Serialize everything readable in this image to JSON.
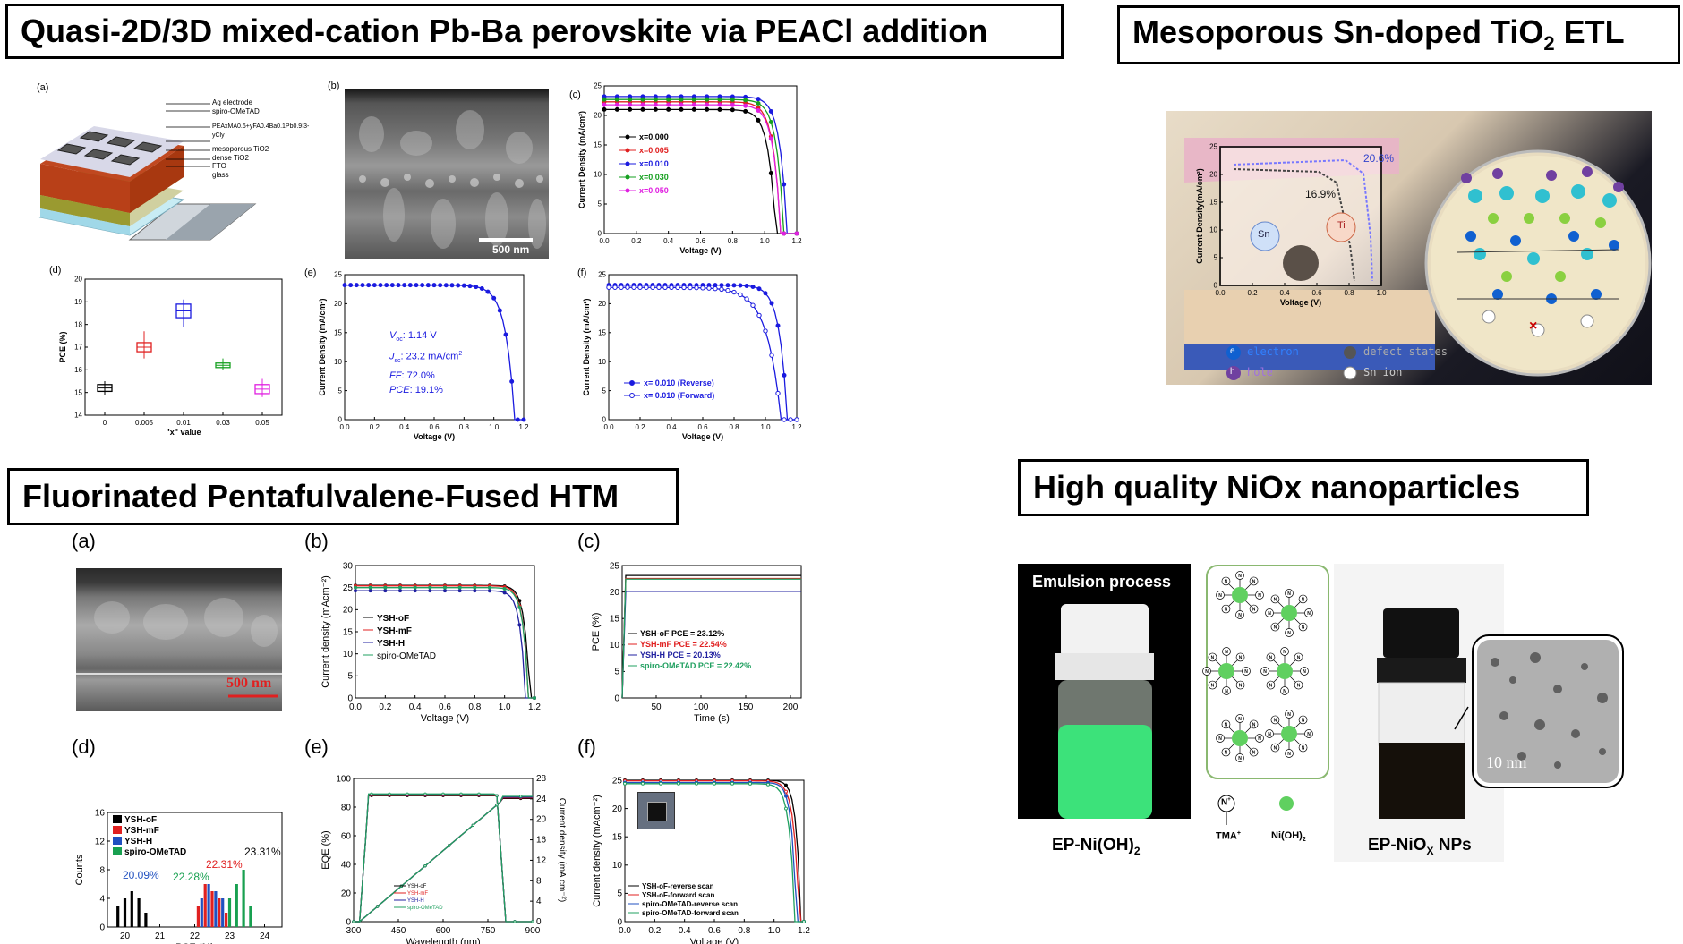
{
  "titles": {
    "t1": "Quasi-2D/3D mixed-cation Pb-Ba perovskite via PEACl addition",
    "t2_pre": "Mesoporous Sn-doped TiO",
    "t2_sub": "2",
    "t2_post": " ETL",
    "t3": "Fluorinated Pentafulvalene-Fused HTM",
    "t4": "High quality NiOx nanoparticles"
  },
  "q1": {
    "a": {
      "label": "(a)",
      "layers": [
        "Ag electrode",
        "spiro-OMeTAD",
        "PEAxMA0.6+yFA0.4Ba0.1Pb0.9I3-yCly",
        "mesoporous TiO2",
        "dense TiO2",
        "FTO",
        "glass"
      ]
    },
    "b": {
      "label": "(b)",
      "scale": "500 nm"
    },
    "c": {
      "label": "(c)",
      "ylabel": "Current Density (mA/cm²)",
      "xlabel": "Voltage (V)",
      "xticks": [
        "0.0",
        "0.2",
        "0.4",
        "0.6",
        "0.8",
        "1.0",
        "1.2"
      ],
      "yticks": [
        "0",
        "5",
        "10",
        "15",
        "20",
        "25"
      ],
      "legend": [
        "x=0.000",
        "x=0.005",
        "x=0.010",
        "x=0.030",
        "x=0.050"
      ],
      "colors": [
        "#000000",
        "#e02020",
        "#1a1adf",
        "#16a020",
        "#e020e0"
      ]
    },
    "d": {
      "label": "(d)",
      "ylabel": "PCE (%)",
      "xlabel": "\"x\" value",
      "xticks": [
        "0",
        "0.005",
        "0.01",
        "0.03",
        "0.05"
      ],
      "yticks": [
        "14",
        "15",
        "16",
        "17",
        "18",
        "19",
        "20"
      ]
    },
    "e": {
      "label": "(e)",
      "ylabel": "Current Density (mA/cm²)",
      "xlabel": "Voltage (V)",
      "xticks": [
        "0.0",
        "0.2",
        "0.4",
        "0.6",
        "0.8",
        "1.0",
        "1.2"
      ],
      "yticks": [
        "0",
        "5",
        "10",
        "15",
        "20",
        "25"
      ],
      "voc": "1.14 V",
      "jsc": "23.2 mA/cm",
      "ff": "72.0%",
      "pce": "19.1%",
      "voc_lbl": "V",
      "voc_sub": "oc",
      "jsc_lbl": "J",
      "jsc_sub": "sc",
      "jsc_sup": "2",
      "ff_lbl": "FF",
      "pce_lbl": "PCE"
    },
    "f": {
      "label": "(f)",
      "ylabel": "Current Density (mA/cm²)",
      "xlabel": "Voltage (V)",
      "xticks": [
        "0.0",
        "0.2",
        "0.4",
        "0.6",
        "0.8",
        "1.0",
        "1.2"
      ],
      "yticks": [
        "0",
        "5",
        "10",
        "15",
        "20",
        "25"
      ],
      "legend": [
        "x= 0.010 (Reverse)",
        "x= 0.010 (Forward)"
      ]
    }
  },
  "q2": {
    "ylabel": "Current Density(mA/cm²)",
    "xlabel": "Voltage (V)",
    "pce_high": "20.6%",
    "pce_low": "16.9%",
    "sn": "Sn",
    "ti": "Ti",
    "xticks": [
      "0.0",
      "0.2",
      "0.4",
      "0.6",
      "0.8",
      "1.0"
    ],
    "yticks": [
      "0",
      "5",
      "10",
      "15",
      "20",
      "25"
    ],
    "legend": [
      "electron",
      "hole",
      "defect states",
      "Sn ion"
    ],
    "legend_glyphs": [
      "e",
      "h"
    ]
  },
  "q3": {
    "a": {
      "label": "(a)",
      "scale": "500 nm"
    },
    "b": {
      "label": "(b)",
      "ylabel": "Current density (mAcm⁻²)",
      "xlabel": "Voltage (V)",
      "xticks": [
        "0.0",
        "0.2",
        "0.4",
        "0.6",
        "0.8",
        "1.0",
        "1.2"
      ],
      "yticks": [
        "0",
        "5",
        "10",
        "15",
        "20",
        "25",
        "30"
      ],
      "legend": [
        "YSH-oF",
        "YSH-mF",
        "YSH-H",
        "spiro-OMeTAD"
      ]
    },
    "c": {
      "label": "(c)",
      "ylabel": "PCE (%)",
      "xlabel": "Time (s)",
      "xticks": [
        "50",
        "100",
        "150",
        "200"
      ],
      "yticks": [
        "0",
        "5",
        "10",
        "15",
        "20",
        "25"
      ],
      "legend": [
        "YSH-oF PCE = 23.12%",
        "YSH-mF PCE = 22.54%",
        "YSH-H PCE = 20.13%",
        "spiro-OMeTAD PCE = 22.42%"
      ]
    },
    "d": {
      "label": "(d)",
      "ylabel": "Counts",
      "xlabel": "PCE (%)",
      "xticks": [
        "20",
        "21",
        "22",
        "23",
        "24"
      ],
      "yticks": [
        "0",
        "4",
        "8",
        "12",
        "16"
      ],
      "legend": [
        "YSH-oF",
        "YSH-mF",
        "YSH-H",
        "spiro-OMeTAD"
      ],
      "annots": [
        "23.31%",
        "22.31%",
        "22.28%",
        "20.09%"
      ]
    },
    "e": {
      "label": "(e)",
      "ylabel": "EQE (%)",
      "ylabel2": "Current density (mA cm⁻²)",
      "xlabel": "Wavelength (nm)",
      "xticks": [
        "300",
        "450",
        "600",
        "750",
        "900"
      ],
      "yticks": [
        "0",
        "20",
        "40",
        "60",
        "80",
        "100"
      ],
      "y2ticks": [
        "0",
        "4",
        "8",
        "12",
        "16",
        "20",
        "24",
        "28"
      ],
      "legend": [
        "YSH-oF",
        "YSH-mF",
        "YSH-H",
        "spiro-OMeTAD"
      ]
    },
    "f": {
      "label": "(f)",
      "ylabel": "Current density (mAcm⁻²)",
      "xlabel": "Voltage (V)",
      "xticks": [
        "0.0",
        "0.2",
        "0.4",
        "0.6",
        "0.8",
        "1.0",
        "1.2"
      ],
      "yticks": [
        "0",
        "5",
        "10",
        "15",
        "20",
        "25"
      ],
      "legend": [
        "YSH-oF-reverse scan",
        "YSH-oF-forward scan",
        "spiro-OMeTAD-reverse scan",
        "spiro-OMeTAD-forward scan"
      ]
    }
  },
  "q4": {
    "emulsion": "Emulsion process",
    "ep_lbl": "EP-Ni(OH)",
    "ep_sub": "2",
    "tma": "TMA",
    "tma_sup": "+",
    "nioh": "Ni(OH)",
    "nioh_sub": "2",
    "np_pre": "EP-NiO",
    "np_sub": "X",
    "np_post": " NPs",
    "scale": "10 nm",
    "n_glyph": "N",
    "n_sup": "+"
  }
}
